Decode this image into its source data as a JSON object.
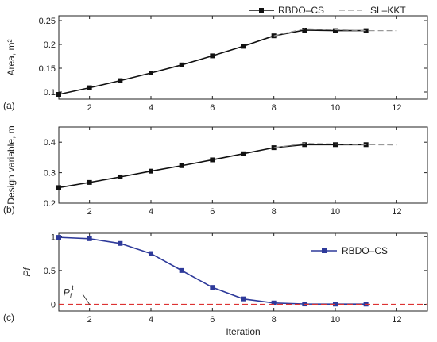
{
  "chart_data": [
    {
      "panel_label": "(a)",
      "type": "line",
      "ylabel": "Area, m²",
      "xlim": [
        1,
        13
      ],
      "ylim": [
        0.085,
        0.26
      ],
      "xticks": [
        2,
        4,
        6,
        8,
        10,
        12
      ],
      "yticks": [
        0.1,
        0.15,
        0.2,
        0.25
      ],
      "legend_position": "top-right",
      "series": [
        {
          "name": "RBDO–CS",
          "color": "#111111",
          "style": "solid",
          "marker": "square",
          "x": [
            1,
            2,
            3,
            4,
            5,
            6,
            7,
            8,
            9,
            10,
            11
          ],
          "y": [
            0.095,
            0.109,
            0.124,
            0.14,
            0.157,
            0.176,
            0.196,
            0.218,
            0.23,
            0.229,
            0.229
          ]
        },
        {
          "name": "SL–KKT",
          "color": "#999999",
          "style": "dashed",
          "marker": "none",
          "x": [
            8,
            9,
            10,
            11,
            12
          ],
          "y": [
            0.218,
            0.233,
            0.231,
            0.229,
            0.229
          ]
        }
      ]
    },
    {
      "panel_label": "(b)",
      "type": "line",
      "ylabel": "Design variable, m",
      "xlim": [
        1,
        13
      ],
      "ylim": [
        0.2,
        0.45
      ],
      "xticks": [
        2,
        4,
        6,
        8,
        10,
        12
      ],
      "yticks": [
        0.2,
        0.3,
        0.4
      ],
      "series": [
        {
          "color": "#111111",
          "style": "solid",
          "marker": "square",
          "x": [
            1,
            2,
            3,
            4,
            5,
            6,
            7,
            8,
            9,
            10,
            11
          ],
          "y": [
            0.251,
            0.268,
            0.286,
            0.305,
            0.323,
            0.342,
            0.362,
            0.382,
            0.392,
            0.392,
            0.392
          ]
        },
        {
          "color": "#999999",
          "style": "dashed",
          "marker": "none",
          "x": [
            8,
            9,
            10,
            11,
            12
          ],
          "y": [
            0.382,
            0.396,
            0.394,
            0.392,
            0.391
          ]
        }
      ]
    },
    {
      "panel_label": "(c)",
      "type": "line",
      "ylabel": "Pf",
      "xlabel": "Iteration",
      "xlim": [
        1,
        13
      ],
      "ylim": [
        -0.1,
        1.05
      ],
      "xticks": [
        2,
        4,
        6,
        8,
        10,
        12
      ],
      "yticks": [
        0,
        0.5,
        1
      ],
      "legend_position": "right",
      "annotation": {
        "text": "P",
        "sub": "f",
        "sup": "t",
        "x": 1.15,
        "y": 0.13
      },
      "series": [
        {
          "name": "RBDO–CS",
          "color": "#2e3a9a",
          "style": "solid",
          "marker": "square",
          "x": [
            1,
            2,
            3,
            4,
            5,
            6,
            7,
            8,
            9,
            10,
            11
          ],
          "y": [
            0.99,
            0.97,
            0.9,
            0.75,
            0.5,
            0.25,
            0.08,
            0.02,
            0.005,
            0.003,
            0.003
          ]
        },
        {
          "color": "#dd3333",
          "style": "dashed",
          "marker": "none",
          "x": [
            1,
            13
          ],
          "y": [
            0.0,
            0.0
          ]
        }
      ]
    }
  ],
  "xlabel_text": "Iteration"
}
